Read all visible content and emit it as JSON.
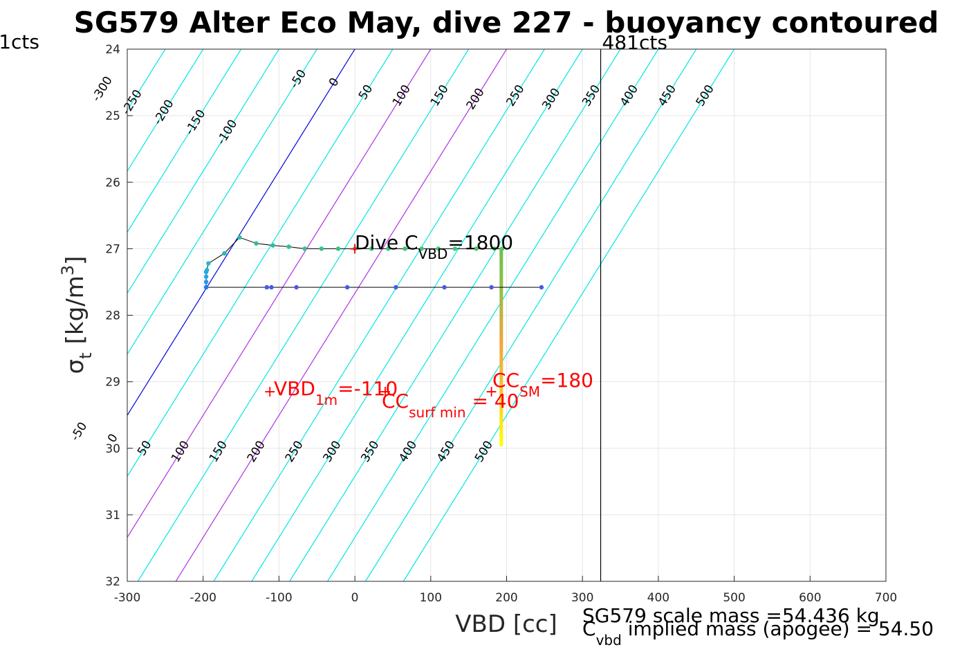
{
  "chart_data": {
    "type": "scatter",
    "title": "SG579 Alter Eco May, dive 227 - buoyancy contoured",
    "xlabel": "VBD [cc]",
    "ylabel": {
      "main": "σ",
      "sub": "t",
      "unit": "[kg/m",
      "sup": "3",
      "close": "]"
    },
    "xlim": [
      -300,
      700
    ],
    "ylim": [
      32,
      24
    ],
    "x_ticks": [
      -300,
      -200,
      -100,
      0,
      100,
      200,
      300,
      400,
      500,
      600,
      700
    ],
    "y_ticks": [
      24,
      25,
      26,
      27,
      28,
      29,
      30,
      31,
      32
    ],
    "grid": true,
    "buoyancy_contours": {
      "levels": [
        -300,
        -250,
        -200,
        -150,
        -100,
        -50,
        0,
        50,
        100,
        150,
        200,
        250,
        300,
        350,
        400,
        450,
        500
      ],
      "x_at_sigma_24": [
        -300,
        -250,
        -200,
        -150,
        -100,
        -50,
        0,
        50,
        100,
        150,
        200,
        250,
        300,
        350,
        400,
        450,
        500
      ],
      "slope_cc_per_kgm3": -54.5,
      "zero_color": "#0000dd",
      "highlight_levels": [
        100,
        200
      ],
      "highlight_color": "#b030e0",
      "other_color": "#00e5e5",
      "top_labels": [
        {
          "text": "-300",
          "sigma": 24.6
        },
        {
          "text": "-250",
          "sigma": 24.8
        },
        {
          "text": "-200",
          "sigma": 24.95
        },
        {
          "text": "-150",
          "sigma": 25.1
        },
        {
          "text": "-100",
          "sigma": 25.25
        },
        {
          "text": "-50",
          "sigma": 24.45
        },
        {
          "text": "0",
          "sigma": 24.5
        },
        {
          "text": "50",
          "sigma": 24.65
        },
        {
          "text": "100",
          "sigma": 24.7
        },
        {
          "text": "150",
          "sigma": 24.7
        },
        {
          "text": "200",
          "sigma": 24.75
        },
        {
          "text": "250",
          "sigma": 24.7
        },
        {
          "text": "300",
          "sigma": 24.75
        },
        {
          "text": "350",
          "sigma": 24.7
        },
        {
          "text": "400",
          "sigma": 24.7
        },
        {
          "text": "450",
          "sigma": 24.7
        },
        {
          "text": "500",
          "sigma": 24.7
        }
      ],
      "bottom_labels": [
        {
          "level": -50,
          "text": "-50",
          "sigma": 29.75
        },
        {
          "level": 0,
          "text": "0",
          "sigma": 29.85
        },
        {
          "level": 50,
          "text": "50",
          "sigma": 30.0
        },
        {
          "level": 100,
          "text": "100",
          "sigma": 30.05
        },
        {
          "level": 150,
          "text": "150",
          "sigma": 30.05
        },
        {
          "level": 200,
          "text": "200",
          "sigma": 30.05
        },
        {
          "level": 250,
          "text": "250",
          "sigma": 30.05
        },
        {
          "level": 300,
          "text": "300",
          "sigma": 30.05
        },
        {
          "level": 350,
          "text": "350",
          "sigma": 30.05
        },
        {
          "level": 400,
          "text": "400",
          "sigma": 30.05
        },
        {
          "level": 450,
          "text": "450",
          "sigma": 30.05
        },
        {
          "level": 500,
          "text": "500",
          "sigma": 30.05
        }
      ]
    },
    "dive_track": {
      "descent": {
        "x": [
          -196,
          -196,
          -196,
          -196,
          -195,
          -193,
          -172,
          -152,
          -130,
          -108,
          -87,
          -66,
          -44,
          -22,
          0,
          22,
          44,
          66,
          88,
          110,
          132,
          160,
          184,
          194
        ],
        "y": [
          27.58,
          27.5,
          27.42,
          27.35,
          27.32,
          27.22,
          27.07,
          26.83,
          26.92,
          26.95,
          26.97,
          27.0,
          27.0,
          27.0,
          27.0,
          27.0,
          27.0,
          27.0,
          27.0,
          27.0,
          27.0,
          27.0,
          27.0,
          27.0
        ],
        "colors": [
          "#2196f0",
          "#2196f0",
          "#1fa6e6",
          "#1fa6e6",
          "#22b0dc",
          "#25b8c8",
          "#2ab9b0",
          "#2ebd9c",
          "#2fbe98",
          "#30bf95",
          "#32c090",
          "#34c18c",
          "#35c288",
          "#36c284",
          "#38c380",
          "#3ac47c",
          "#3cc478",
          "#3ec574",
          "#40c670",
          "#43c76c",
          "#46c768",
          "#49c864",
          "#4cc960",
          "#4cc960"
        ]
      },
      "ascent": {
        "x": [
          -196,
          -116,
          -110,
          -77,
          -10,
          54,
          118,
          180,
          246
        ],
        "y": [
          27.58,
          27.58,
          27.58,
          27.58,
          27.58,
          27.58,
          27.58,
          27.58,
          27.58
        ],
        "colors": [
          "#1b7df0",
          "#4a5ae6",
          "#4a5ae6",
          "#4a5ae6",
          "#4a5ae6",
          "#4a5ae6",
          "#4a5ae6",
          "#4a5ae6",
          "#4a5ae6"
        ]
      },
      "line_color": "#000000"
    },
    "cc_bar": {
      "x": 193,
      "stops": [
        {
          "sigma": 27.0,
          "color": "#6cc04a"
        },
        {
          "sigma": 27.55,
          "color": "#8cc048"
        },
        {
          "sigma": 28.4,
          "color": "#f4a43c"
        },
        {
          "sigma": 29.0,
          "color": "#f2c030"
        },
        {
          "sigma": 29.97,
          "color": "#ffff00"
        }
      ]
    },
    "vertical_line": {
      "x": 324,
      "label_right": "481cts",
      "label_left": "1cts"
    },
    "markers": [
      {
        "x": 0,
        "y": 27.0,
        "label": "+"
      },
      {
        "x": -112,
        "y": 29.15,
        "label": "+"
      },
      {
        "x": 40,
        "y": 29.15,
        "label": "+"
      },
      {
        "x": 180,
        "y": 29.15,
        "label": "+"
      }
    ],
    "annotations": {
      "dive_c": {
        "main": "Dive C",
        "sub": "VBD",
        "tail": "=1800"
      },
      "vbd_1m": {
        "main": "VBD",
        "sub": "1m",
        "tail": "=-110"
      },
      "cc_surf": {
        "main": "CC",
        "sub": "surf min",
        "tail": " = 40"
      },
      "cc_sm": {
        "main": "CC",
        "sub": "SM",
        "tail": "=180"
      },
      "scale_mass": "SG579 scale mass =54.436 kg",
      "implied_mass": {
        "main": "C",
        "sub": "vbd",
        "tail": " implied mass (apogee) = 54.50"
      }
    }
  },
  "colors": {
    "grid": "#e5e5e5",
    "axis": "#262626",
    "red": "#ff0000"
  }
}
